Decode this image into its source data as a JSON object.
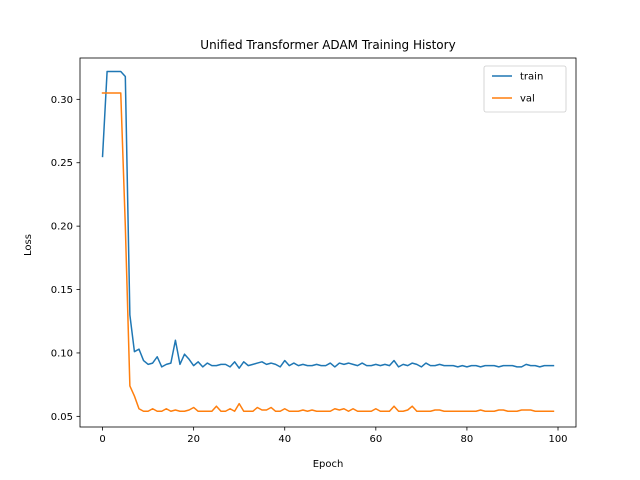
{
  "chart_data": {
    "type": "line",
    "title": "Unified Transformer ADAM Training History",
    "xlabel": "Epoch",
    "ylabel": "Loss",
    "xlim": [
      -4.95,
      103.95
    ],
    "ylim": [
      0.0416,
      0.3326
    ],
    "xticks": [
      0,
      20,
      40,
      60,
      80,
      100
    ],
    "yticks": [
      0.05,
      0.1,
      0.15,
      0.2,
      0.25,
      0.3
    ],
    "ytick_labels": [
      "0.05",
      "0.10",
      "0.15",
      "0.20",
      "0.25",
      "0.30"
    ],
    "grid": false,
    "legend_position": "top-right",
    "series": [
      {
        "name": "train",
        "color": "#1f77b4",
        "x": [
          0,
          1,
          2,
          3,
          4,
          5,
          6,
          7,
          8,
          9,
          10,
          11,
          12,
          13,
          14,
          15,
          16,
          17,
          18,
          19,
          20,
          21,
          22,
          23,
          24,
          25,
          26,
          27,
          28,
          29,
          30,
          31,
          32,
          33,
          34,
          35,
          36,
          37,
          38,
          39,
          40,
          41,
          42,
          43,
          44,
          45,
          46,
          47,
          48,
          49,
          50,
          51,
          52,
          53,
          54,
          55,
          56,
          57,
          58,
          59,
          60,
          61,
          62,
          63,
          64,
          65,
          66,
          67,
          68,
          69,
          70,
          71,
          72,
          73,
          74,
          75,
          76,
          77,
          78,
          79,
          80,
          81,
          82,
          83,
          84,
          85,
          86,
          87,
          88,
          89,
          90,
          91,
          92,
          93,
          94,
          95,
          96,
          97,
          98,
          99
        ],
        "values": [
          0.255,
          0.322,
          0.322,
          0.322,
          0.322,
          0.318,
          0.13,
          0.101,
          0.103,
          0.094,
          0.091,
          0.092,
          0.097,
          0.089,
          0.091,
          0.092,
          0.11,
          0.091,
          0.099,
          0.095,
          0.09,
          0.093,
          0.089,
          0.092,
          0.09,
          0.09,
          0.091,
          0.091,
          0.089,
          0.093,
          0.088,
          0.093,
          0.09,
          0.091,
          0.092,
          0.093,
          0.091,
          0.092,
          0.091,
          0.089,
          0.094,
          0.09,
          0.092,
          0.09,
          0.091,
          0.09,
          0.09,
          0.091,
          0.09,
          0.09,
          0.092,
          0.089,
          0.092,
          0.091,
          0.092,
          0.091,
          0.09,
          0.092,
          0.09,
          0.09,
          0.091,
          0.09,
          0.091,
          0.09,
          0.094,
          0.089,
          0.091,
          0.09,
          0.092,
          0.091,
          0.089,
          0.092,
          0.09,
          0.09,
          0.091,
          0.09,
          0.09,
          0.09,
          0.089,
          0.09,
          0.089,
          0.09,
          0.09,
          0.089,
          0.09,
          0.09,
          0.09,
          0.089,
          0.09,
          0.09,
          0.09,
          0.089,
          0.089,
          0.091,
          0.09,
          0.09,
          0.089,
          0.09,
          0.09,
          0.09
        ]
      },
      {
        "name": "val",
        "color": "#ff7f0e",
        "x": [
          0,
          1,
          2,
          3,
          4,
          5,
          6,
          7,
          8,
          9,
          10,
          11,
          12,
          13,
          14,
          15,
          16,
          17,
          18,
          19,
          20,
          21,
          22,
          23,
          24,
          25,
          26,
          27,
          28,
          29,
          30,
          31,
          32,
          33,
          34,
          35,
          36,
          37,
          38,
          39,
          40,
          41,
          42,
          43,
          44,
          45,
          46,
          47,
          48,
          49,
          50,
          51,
          52,
          53,
          54,
          55,
          56,
          57,
          58,
          59,
          60,
          61,
          62,
          63,
          64,
          65,
          66,
          67,
          68,
          69,
          70,
          71,
          72,
          73,
          74,
          75,
          76,
          77,
          78,
          79,
          80,
          81,
          82,
          83,
          84,
          85,
          86,
          87,
          88,
          89,
          90,
          91,
          92,
          93,
          94,
          95,
          96,
          97,
          98,
          99
        ],
        "values": [
          0.305,
          0.305,
          0.305,
          0.305,
          0.305,
          0.2,
          0.074,
          0.066,
          0.056,
          0.054,
          0.054,
          0.056,
          0.054,
          0.054,
          0.056,
          0.054,
          0.055,
          0.054,
          0.054,
          0.055,
          0.057,
          0.054,
          0.054,
          0.054,
          0.054,
          0.058,
          0.054,
          0.054,
          0.056,
          0.054,
          0.06,
          0.054,
          0.054,
          0.054,
          0.057,
          0.055,
          0.055,
          0.057,
          0.054,
          0.054,
          0.056,
          0.054,
          0.054,
          0.054,
          0.055,
          0.054,
          0.055,
          0.054,
          0.054,
          0.054,
          0.054,
          0.056,
          0.055,
          0.056,
          0.054,
          0.056,
          0.054,
          0.054,
          0.054,
          0.054,
          0.056,
          0.054,
          0.054,
          0.054,
          0.058,
          0.054,
          0.054,
          0.055,
          0.058,
          0.054,
          0.054,
          0.054,
          0.054,
          0.055,
          0.055,
          0.054,
          0.054,
          0.054,
          0.054,
          0.054,
          0.054,
          0.054,
          0.054,
          0.055,
          0.054,
          0.054,
          0.054,
          0.055,
          0.055,
          0.054,
          0.054,
          0.054,
          0.055,
          0.055,
          0.055,
          0.054,
          0.054,
          0.054,
          0.054,
          0.054
        ]
      }
    ]
  }
}
